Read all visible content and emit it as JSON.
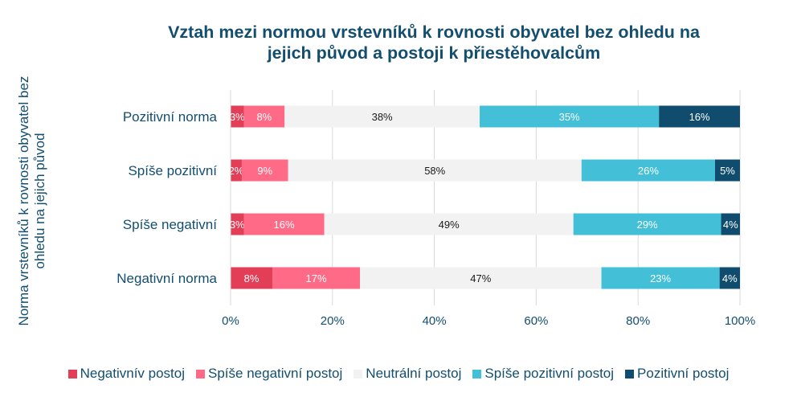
{
  "chart_data": {
    "type": "bar",
    "orientation": "horizontal",
    "stacked": "percent",
    "title": "Vztah mezi normou vrstevníků k rovnosti obyvatel bez ohledu na jejich původ a postoji k přiestěhovalcům",
    "title_lines": [
      "Vztah mezi normou vrstevníků k rovnosti obyvatel bez ohledu na",
      "jejich původ a postoji k přiestěhovalcům"
    ],
    "xlabel": "",
    "ylabel": "Norma vrstevníků k rovnosti obyvatel bez ohledu na jejich původ",
    "xlim": [
      0,
      100
    ],
    "x_ticks": [
      "0%",
      "20%",
      "40%",
      "60%",
      "80%",
      "100%"
    ],
    "grid": true,
    "legend_position": "bottom",
    "categories": [
      "Pozitivní norma",
      "Spíše pozitivní",
      "Spíše negativní",
      "Negativní norma"
    ],
    "series": [
      {
        "name": "Negativnív postoj",
        "color": "#e23e57",
        "label_color": "#ffffff",
        "values": [
          2.6,
          2.2,
          2.6,
          8.2
        ],
        "labels": [
          "3%",
          "2%",
          "3%",
          "8%"
        ]
      },
      {
        "name": "Spíše negativní postoj",
        "color": "#ff6b86",
        "label_color": "#ffffff",
        "values": [
          8.0,
          9.1,
          15.8,
          17.2
        ],
        "labels": [
          "8%",
          "9%",
          "16%",
          "17%"
        ]
      },
      {
        "name": "Neutrální postoj",
        "color": "#f2f2f2",
        "label_color": "#1a1a1a",
        "values": [
          38.3,
          57.6,
          48.9,
          47.4
        ],
        "labels": [
          "38%",
          "58%",
          "49%",
          "47%"
        ]
      },
      {
        "name": "Spíše pozitivní postoj",
        "color": "#43c0d8",
        "label_color": "#ffffff",
        "values": [
          35.2,
          26.2,
          29.0,
          23.2
        ],
        "labels": [
          "35%",
          "26%",
          "29%",
          "23%"
        ]
      },
      {
        "name": "Pozitivní postoj",
        "color": "#0f4c6e",
        "label_color": "#ffffff",
        "values": [
          15.9,
          4.9,
          3.7,
          4.0
        ],
        "labels": [
          "16%",
          "5%",
          "4%",
          "4%"
        ]
      }
    ]
  },
  "colors": {
    "text": "#134e6f",
    "gridline": "#d9d9d9"
  }
}
